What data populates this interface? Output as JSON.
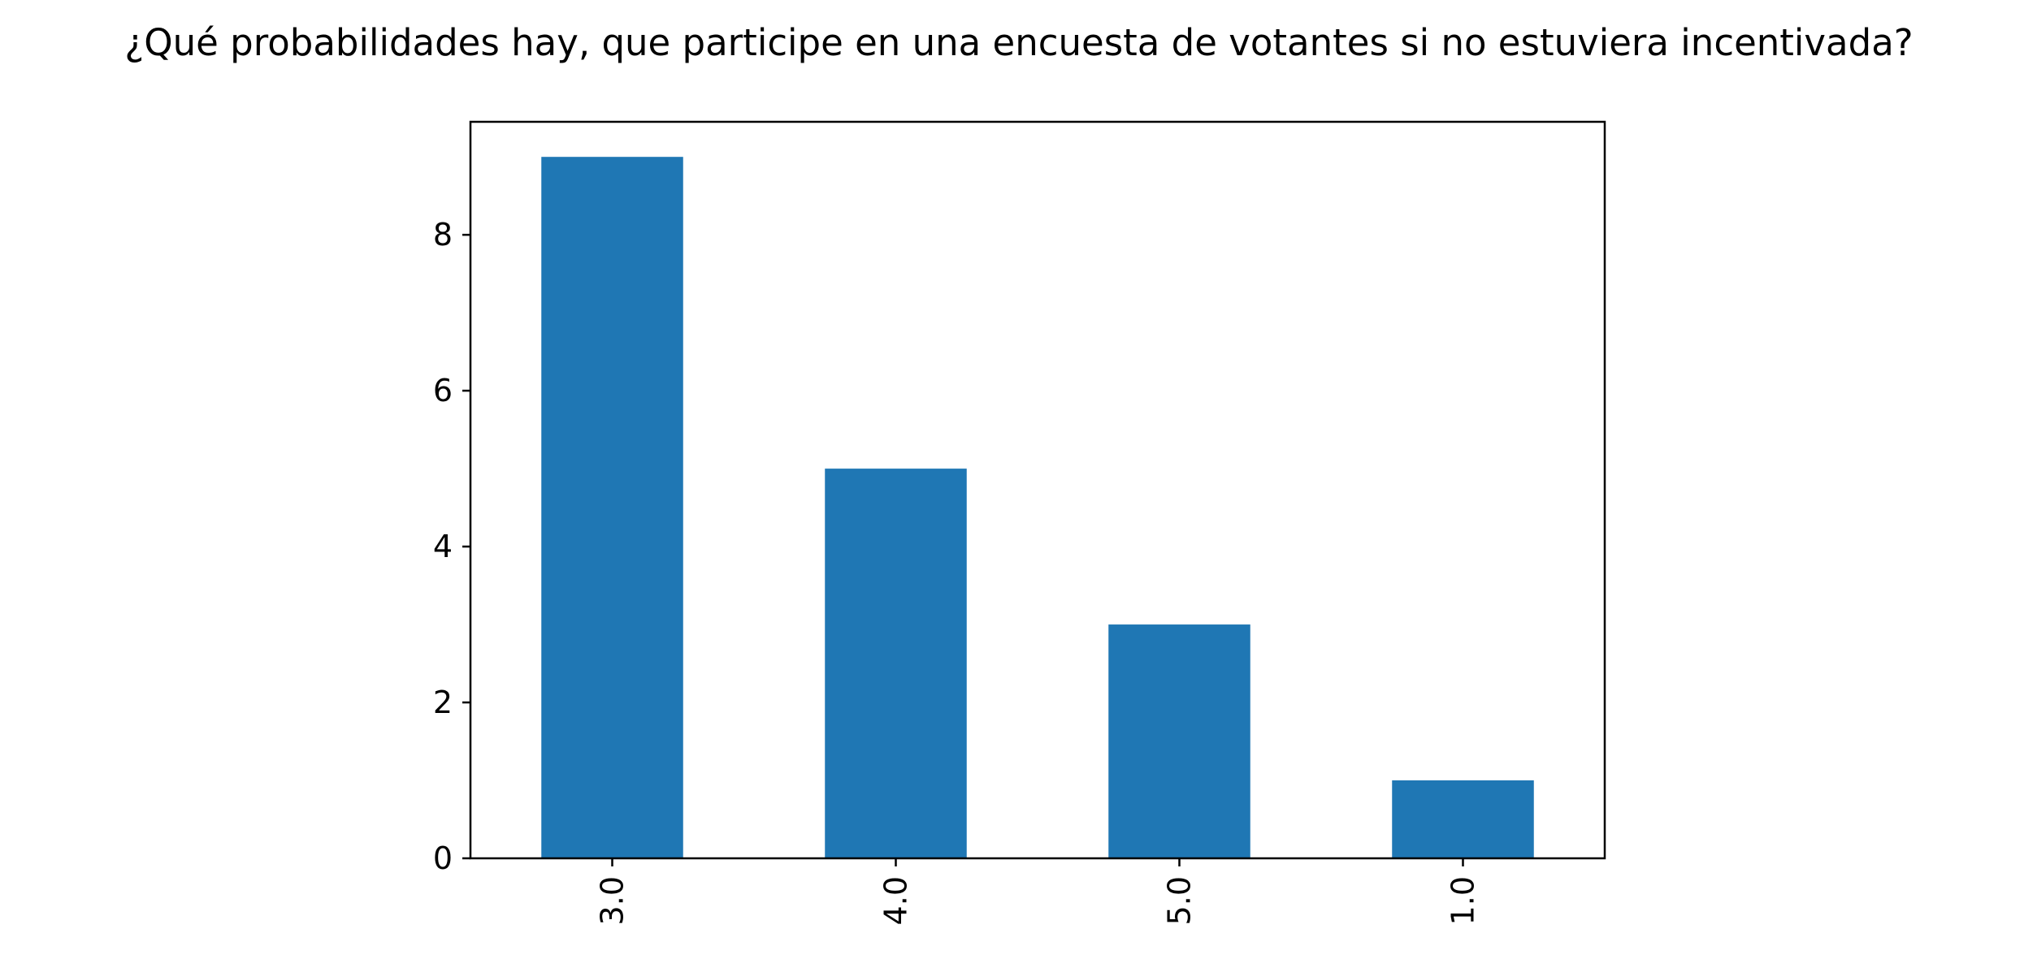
{
  "chart_data": {
    "type": "bar",
    "title": "¿Qué probabilidades hay, que participe en una encuesta de votantes si no estuviera incentivada?",
    "xlabel": "",
    "ylabel": "",
    "categories": [
      "3.0",
      "4.0",
      "5.0",
      "1.0"
    ],
    "values": [
      9,
      5,
      3,
      1
    ],
    "ylim": [
      0,
      9.45
    ],
    "yticks": [
      0,
      2,
      4,
      6,
      8
    ],
    "ytick_labels": [
      "0",
      "2",
      "4",
      "6",
      "8"
    ],
    "xtick_rotation": 90,
    "grid": false,
    "legend": "none",
    "colors": {
      "bar": "#1f77b4",
      "axes": "#000000",
      "background": "#ffffff"
    }
  }
}
